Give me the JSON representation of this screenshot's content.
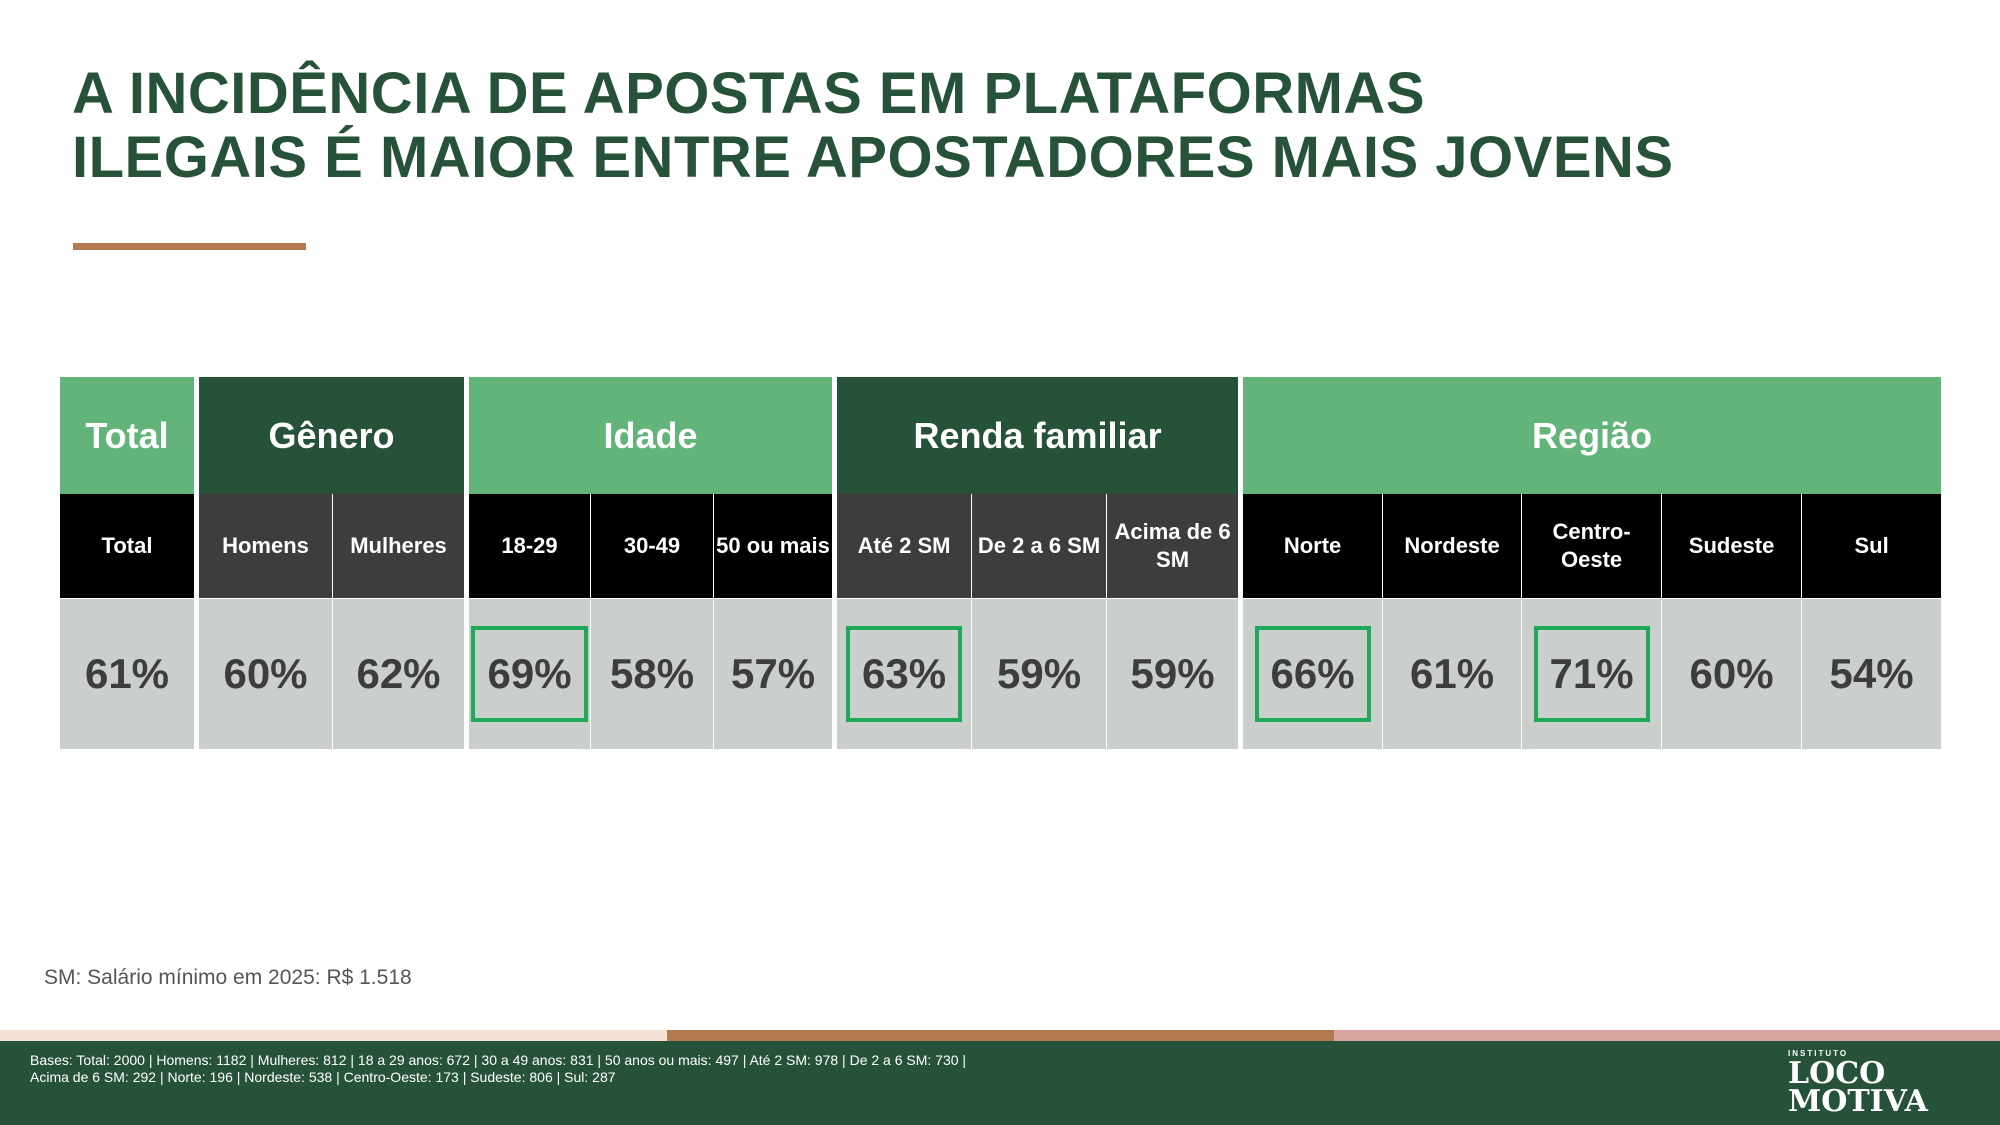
{
  "title": {
    "line1": "A INCIDÊNCIA DE APOSTAS EM PLATAFORMAS",
    "line2": "ILEGAIS É MAIOR ENTRE APOSTADORES MAIS JOVENS"
  },
  "colors": {
    "dark_green": "#27523a",
    "light_green": "#62b47a",
    "highlight_box": "#1ea85a",
    "accent_brown": "#b5794f"
  },
  "table": {
    "groups": [
      {
        "label": "Total",
        "span": 1
      },
      {
        "label": "Gênero",
        "span": 2
      },
      {
        "label": "Idade",
        "span": 3
      },
      {
        "label": "Renda familiar",
        "span": 3
      },
      {
        "label": "Região",
        "span": 5
      }
    ],
    "columns": [
      {
        "label": "Total",
        "value": "61%",
        "highlight": false
      },
      {
        "label": "Homens",
        "value": "60%",
        "highlight": false
      },
      {
        "label": "Mulheres",
        "value": "62%",
        "highlight": false
      },
      {
        "label": "18-29",
        "value": "69%",
        "highlight": true
      },
      {
        "label": "30-49",
        "value": "58%",
        "highlight": false
      },
      {
        "label": "50 ou mais",
        "value": "57%",
        "highlight": false
      },
      {
        "label": "Até 2 SM",
        "value": "63%",
        "highlight": true
      },
      {
        "label": "De 2 a 6 SM",
        "value": "59%",
        "highlight": false
      },
      {
        "label": "Acima de 6 SM",
        "value": "59%",
        "highlight": false
      },
      {
        "label": "Norte",
        "value": "66%",
        "highlight": true
      },
      {
        "label": "Nordeste",
        "value": "61%",
        "highlight": false
      },
      {
        "label": "Centro-Oeste",
        "value": "71%",
        "highlight": true
      },
      {
        "label": "Sudeste",
        "value": "60%",
        "highlight": false
      },
      {
        "label": "Sul",
        "value": "54%",
        "highlight": false
      }
    ]
  },
  "note": "SM: Salário mínimo em 2025: R$ 1.518",
  "footer": {
    "bases_line1": "Bases: Total: 2000 | Homens: 1182 | Mulheres: 812 | 18 a 29 anos: 672 | 30 a 49 anos: 831 | 50 anos ou mais: 497 | Até 2 SM: 978 | De 2 a 6 SM: 730 |",
    "bases_line2": "Acima de 6 SM: 292 | Norte: 196 | Nordeste: 538 | Centro-Oeste: 173 | Sudeste: 806 | Sul: 287",
    "logo_small": "INSTITUTO",
    "logo_line1": "LOCO",
    "logo_line2": "MOTIVA"
  }
}
